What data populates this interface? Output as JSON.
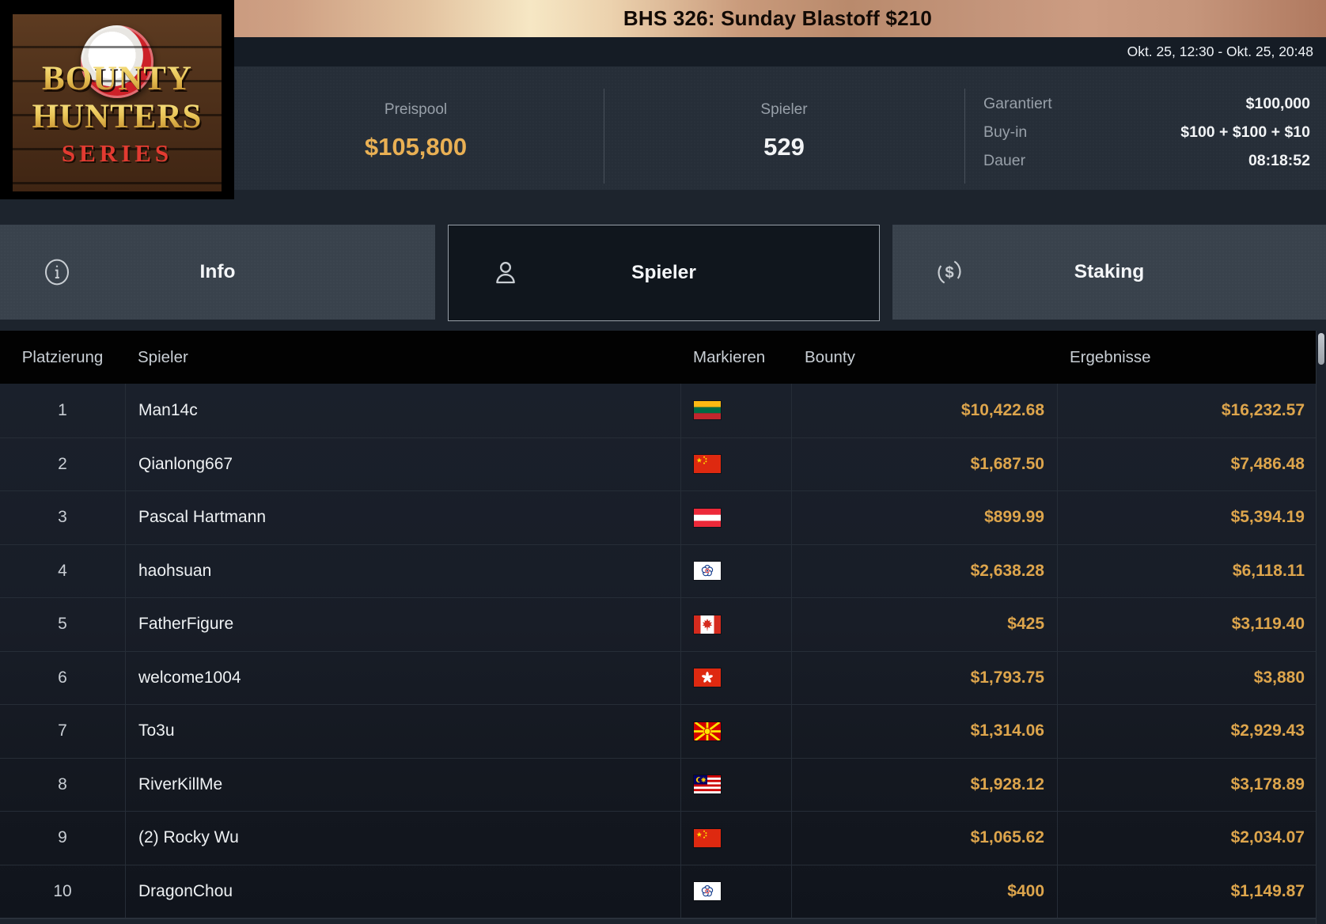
{
  "header": {
    "title": "BHS 326: Sunday Blastoff $210",
    "date_range": "Okt. 25, 12:30 - Okt. 25, 20:48"
  },
  "logo": {
    "line1": "BOUNTY",
    "line2": "HUNTERS",
    "line3": "SERIES"
  },
  "stats": {
    "prizepool_label": "Preispool",
    "prizepool_value": "$105,800",
    "players_label": "Spieler",
    "players_value": "529",
    "details": [
      {
        "label": "Garantiert",
        "value": "$100,000"
      },
      {
        "label": "Buy-in",
        "value": "$100 + $100 + $10"
      },
      {
        "label": "Dauer",
        "value": "08:18:52"
      }
    ]
  },
  "tabs": [
    {
      "label": "Info",
      "icon": "info-icon",
      "active": false
    },
    {
      "label": "Spieler",
      "icon": "person-icon",
      "active": true
    },
    {
      "label": "Staking",
      "icon": "dollar-circle-icon",
      "active": false
    }
  ],
  "table": {
    "columns": [
      "Platzierung",
      "Spieler",
      "Markieren",
      "Bounty",
      "Ergebnisse"
    ],
    "rows": [
      {
        "rank": "1",
        "player": "Man14c",
        "flag": "lithuania",
        "flag_code": "lt",
        "bounty": "$10,422.68",
        "result": "$16,232.57"
      },
      {
        "rank": "2",
        "player": "Qianlong667",
        "flag": "china",
        "flag_code": "cn",
        "bounty": "$1,687.50",
        "result": "$7,486.48"
      },
      {
        "rank": "3",
        "player": "Pascal Hartmann",
        "flag": "austria",
        "flag_code": "at",
        "bounty": "$899.99",
        "result": "$5,394.19"
      },
      {
        "rank": "4",
        "player": "haohsuan",
        "flag": "chinese-taipei",
        "flag_code": "tw",
        "bounty": "$2,638.28",
        "result": "$6,118.11"
      },
      {
        "rank": "5",
        "player": "FatherFigure",
        "flag": "canada",
        "flag_code": "ca",
        "bounty": "$425",
        "result": "$3,119.40"
      },
      {
        "rank": "6",
        "player": "welcome1004",
        "flag": "hong-kong",
        "flag_code": "hk",
        "bounty": "$1,793.75",
        "result": "$3,880"
      },
      {
        "rank": "7",
        "player": "To3u",
        "flag": "north-macedonia",
        "flag_code": "mk",
        "bounty": "$1,314.06",
        "result": "$2,929.43"
      },
      {
        "rank": "8",
        "player": "RiverKillMe",
        "flag": "malaysia",
        "flag_code": "my",
        "bounty": "$1,928.12",
        "result": "$3,178.89"
      },
      {
        "rank": "9",
        "player": "(2) Rocky Wu",
        "flag": "china",
        "flag_code": "cn",
        "bounty": "$1,065.62",
        "result": "$2,034.07"
      },
      {
        "rank": "10",
        "player": "DragonChou",
        "flag": "chinese-taipei",
        "flag_code": "tw",
        "bounty": "$400",
        "result": "$1,149.87"
      }
    ]
  },
  "colors": {
    "accent_gold": "#e9b054",
    "amount_gold": "#dda54c",
    "titlebar_copper_light": "#f6e7c4",
    "titlebar_copper_dark": "#6e452f",
    "panel_bg": "#262e38",
    "row_bg": "#1a202b",
    "active_tab_bg": "#10161d"
  }
}
